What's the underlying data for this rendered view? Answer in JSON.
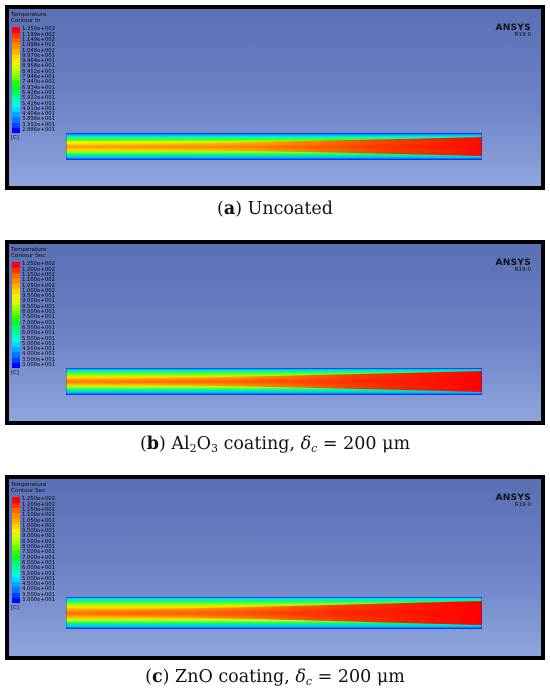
{
  "panels": [
    {
      "legend_title": "Temperature",
      "legend_subtitle": "Contour In",
      "ticks": [
        "1.250e+002",
        "1.199e+002",
        "1.149e+002",
        "1.098e+002",
        "1.048e+002",
        "9.970e+001",
        "9.464e+001",
        "8.958e+001",
        "8.452e+001",
        "7.946e+001",
        "7.440e+001",
        "6.934e+001",
        "6.428e+001",
        "5.922e+001",
        "5.416e+001",
        "4.910e+001",
        "4.404e+001",
        "3.898e+001",
        "3.392e+001",
        "2.886e+001"
      ],
      "unit": "[C]",
      "brand": "ANSYS",
      "version": "R19.0",
      "caption": {
        "letter": "a",
        "text": "Uncoated"
      }
    },
    {
      "legend_title": "Temperature",
      "legend_subtitle": "Contour Sec",
      "ticks": [
        "1.250e+002",
        "1.200e+002",
        "1.150e+002",
        "1.100e+002",
        "1.050e+002",
        "1.000e+002",
        "9.500e+001",
        "9.000e+001",
        "8.500e+001",
        "8.000e+001",
        "7.500e+001",
        "7.000e+001",
        "6.500e+001",
        "6.000e+001",
        "5.500e+001",
        "5.000e+001",
        "4.500e+001",
        "4.000e+001",
        "3.500e+001",
        "3.000e+001"
      ],
      "unit": "[C]",
      "brand": "ANSYS",
      "version": "R19.0",
      "caption": {
        "letter": "b",
        "material": "Al",
        "sub1": "2",
        "mid": "O",
        "sub2": "3",
        "text": " coating, ",
        "delta": "δ",
        "delta_sub": "c",
        "value": " = 200 μm"
      }
    },
    {
      "legend_title": "Temperature",
      "legend_subtitle": "Contour Sec",
      "ticks": [
        "1.250e+002",
        "1.200e+002",
        "1.150e+002",
        "1.100e+002",
        "1.050e+002",
        "1.000e+002",
        "9.500e+001",
        "9.000e+001",
        "8.500e+001",
        "8.000e+001",
        "7.500e+001",
        "7.000e+001",
        "6.500e+001",
        "6.000e+001",
        "5.500e+001",
        "5.000e+001",
        "4.500e+001",
        "4.000e+001",
        "3.500e+001",
        "3.000e+001"
      ],
      "unit": "[C]",
      "brand": "ANSYS",
      "version": "R19.0",
      "caption": {
        "letter": "c",
        "text": "ZnO coating, ",
        "delta": "δ",
        "delta_sub": "c",
        "value": " = 200 μm"
      }
    }
  ],
  "colormap": [
    "#ff0000",
    "#ff3300",
    "#ff6600",
    "#ff8c00",
    "#ffb000",
    "#ffd500",
    "#f5f000",
    "#d2ff00",
    "#a8ff00",
    "#6eff00",
    "#2eff00",
    "#00ff2a",
    "#00ff6a",
    "#00ffaa",
    "#00ffe0",
    "#00d8ff",
    "#00a8ff",
    "#0078ff",
    "#0040ff",
    "#0000ff"
  ]
}
